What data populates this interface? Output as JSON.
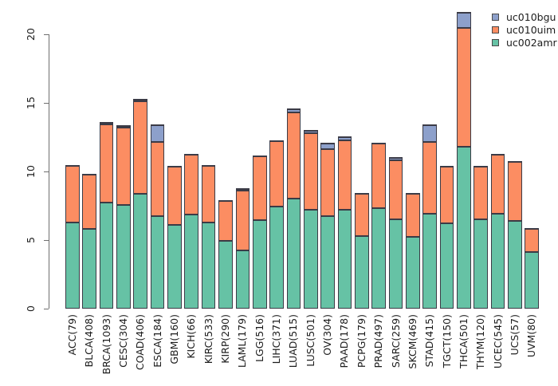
{
  "chart_data": {
    "type": "bar",
    "stacked": true,
    "title": "",
    "xlabel": "",
    "ylabel": "",
    "categories": [
      "ACC(79)",
      "BLCA(408)",
      "BRCA(1093)",
      "CESC(304)",
      "COAD(406)",
      "ESCA(184)",
      "GBM(160)",
      "KICH(66)",
      "KIRC(533)",
      "KIRP(290)",
      "LAML(179)",
      "LGG(516)",
      "LIHC(371)",
      "LUAD(515)",
      "LUSC(501)",
      "OV(304)",
      "PAAD(178)",
      "PCPG(179)",
      "PRAD(497)",
      "SARC(259)",
      "SKCM(469)",
      "STAD(415)",
      "TGCT(150)",
      "THCA(501)",
      "THYM(120)",
      "UCEC(545)",
      "UCS(57)",
      "UVM(80)"
    ],
    "series": [
      {
        "name": "uc002amr",
        "color": "#66C2A5",
        "values": [
          6.3,
          5.8,
          7.75,
          7.55,
          8.4,
          6.75,
          6.1,
          6.85,
          6.3,
          4.95,
          4.25,
          6.45,
          7.45,
          8.05,
          7.2,
          6.75,
          7.2,
          5.3,
          7.35,
          6.5,
          5.25,
          6.95,
          6.2,
          11.8,
          6.5,
          6.9,
          6.4,
          4.15
        ]
      },
      {
        "name": "uc010uim",
        "color": "#FC8D62",
        "values": [
          4.2,
          4.05,
          5.7,
          5.65,
          6.75,
          5.4,
          4.3,
          4.45,
          4.15,
          2.95,
          4.35,
          4.7,
          4.85,
          6.25,
          5.6,
          4.9,
          5.1,
          3.15,
          4.75,
          4.3,
          3.2,
          5.2,
          4.2,
          8.7,
          3.9,
          4.4,
          4.35,
          1.7
        ]
      },
      {
        "name": "uc010bgu",
        "color": "#8DA0CB",
        "values": [
          0,
          0,
          0.15,
          0.1,
          0.15,
          1.3,
          0,
          0,
          0,
          0,
          0.2,
          0,
          0,
          0.3,
          0.25,
          0.45,
          0.25,
          0,
          0,
          0.25,
          0,
          1.3,
          0,
          1.15,
          0,
          0,
          0,
          0
        ]
      }
    ],
    "legend": {
      "position": "top-right",
      "entries_top_to_bottom": [
        "uc010bgu",
        "uc010uim",
        "uc002amr"
      ]
    },
    "y_ticks": [
      0,
      5,
      10,
      15,
      20
    ],
    "ylim": [
      0,
      21.7
    ],
    "grid": false,
    "bar_border_color": "#3b3b46",
    "axis_color": "#6f6f6f"
  }
}
